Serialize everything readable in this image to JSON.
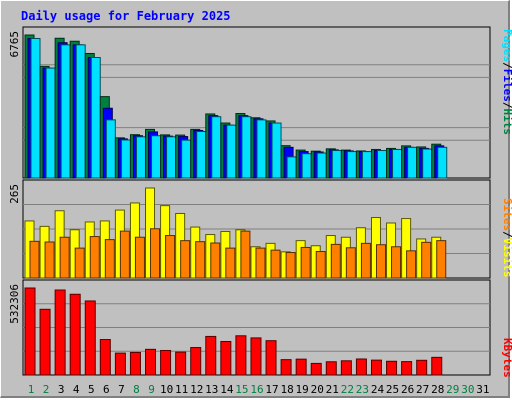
{
  "chart_data": {
    "type": "bar",
    "title": "Daily usage for February 2025",
    "days": [
      "1",
      "2",
      "3",
      "4",
      "5",
      "6",
      "7",
      "8",
      "9",
      "10",
      "11",
      "12",
      "13",
      "14",
      "15",
      "16",
      "17",
      "18",
      "19",
      "20",
      "21",
      "22",
      "23",
      "24",
      "25",
      "26",
      "27",
      "28",
      "29",
      "30",
      "31"
    ],
    "weekend_days": [
      "1",
      "2",
      "8",
      "9",
      "15",
      "16",
      "22",
      "23",
      "29",
      "30"
    ],
    "colors": {
      "hits": "#008040",
      "files": "#0000ff",
      "pages": "#00e0ff",
      "visits": "#ffff00",
      "sites": "#ff8000",
      "kbytes": "#ff0000",
      "weekday_label": "#000000",
      "weekend_label": "#008040"
    },
    "panels": [
      {
        "name": "hits-files-pages",
        "ytick": "6765",
        "ymax": 6765,
        "labels": [
          {
            "text": "Hits",
            "color": "#008040"
          },
          {
            "text": "/",
            "color": "#000000"
          },
          {
            "text": "Files",
            "color": "#0000ff"
          },
          {
            "text": "/",
            "color": "#000000"
          },
          {
            "text": "Pages",
            "color": "#00e0ff"
          }
        ],
        "series": [
          {
            "name": "Hits",
            "color": "#008040",
            "values": [
              6765,
              5280,
              6610,
              6470,
              5890,
              3850,
              1900,
              2050,
              2300,
              2040,
              2030,
              2300,
              3030,
              2600,
              3050,
              2850,
              2700,
              1530,
              1320,
              1270,
              1380,
              1320,
              1280,
              1350,
              1400,
              1520,
              1470,
              1600
            ]
          },
          {
            "name": "Files",
            "color": "#0000ff",
            "values": [
              6600,
              5200,
              6400,
              6300,
              5700,
              3300,
              1850,
              2000,
              2180,
              1980,
              1960,
              2250,
              2950,
              2500,
              2950,
              2800,
              2600,
              1450,
              1250,
              1230,
              1330,
              1280,
              1250,
              1300,
              1350,
              1450,
              1400,
              1520
            ]
          },
          {
            "name": "Pages",
            "color": "#00e0ff",
            "values": [
              6600,
              5200,
              6300,
              6300,
              5700,
              2750,
              1800,
              1950,
              2000,
              1950,
              1790,
              2200,
              2900,
              2500,
              2900,
              2750,
              2600,
              1000,
              1150,
              1180,
              1300,
              1250,
              1250,
              1300,
              1350,
              1450,
              1370,
              1450
            ]
          }
        ]
      },
      {
        "name": "visits-sites",
        "ytick": "265",
        "ymax": 265,
        "labels": [
          {
            "text": "Visits",
            "color": "#ffff00"
          },
          {
            "text": "/",
            "color": "#000000"
          },
          {
            "text": "Sites",
            "color": "#ff8000"
          }
        ],
        "series": [
          {
            "name": "Visits",
            "color": "#ffff00",
            "values": [
              168,
              152,
              198,
              142,
              165,
              168,
              200,
              221,
              265,
              213,
              190,
              150,
              128,
              137,
              142,
              92,
              102,
              77,
              110,
              95,
              125,
              120,
              148,
              178,
              162,
              175,
              115,
              120
            ]
          },
          {
            "name": "Sites",
            "color": "#ff8000",
            "values": [
              108,
              106,
              120,
              88,
              122,
              113,
              138,
              120,
              145,
              125,
              110,
              107,
              103,
              88,
              138,
              88,
              82,
              75,
              90,
              78,
              99,
              89,
              102,
              98,
              92,
              80,
              105,
              110
            ]
          }
        ]
      },
      {
        "name": "kbytes",
        "ytick": "532306",
        "ymax": 532306,
        "labels": [
          {
            "text": "KBytes",
            "color": "#ff0000"
          }
        ],
        "series": [
          {
            "name": "KBytes",
            "color": "#ff0000",
            "values": [
              532306,
              402000,
              520000,
              494000,
              453000,
              217000,
              134000,
              138000,
              157000,
              150000,
              140000,
              168000,
              236000,
              205000,
              240000,
              227000,
              210000,
              94000,
              97000,
              71000,
              81000,
              87000,
              98000,
              91000,
              84000,
              82000,
              90000,
              108000
            ]
          }
        ]
      }
    ]
  }
}
